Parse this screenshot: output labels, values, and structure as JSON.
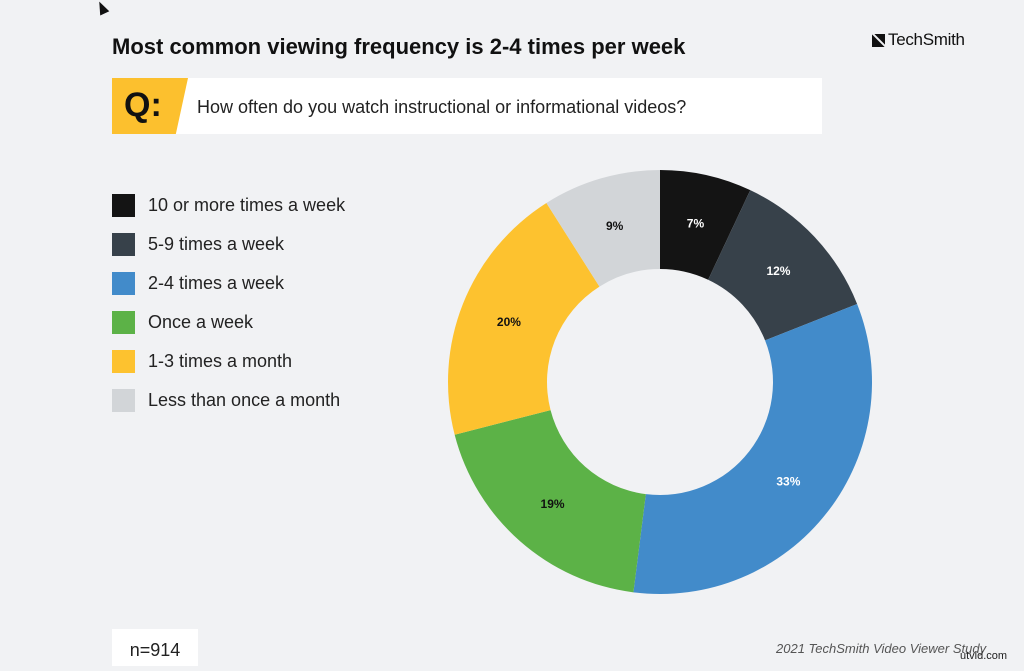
{
  "header": {
    "title": "Most common viewing frequency is 2-4 times per week",
    "logo": "TechSmith"
  },
  "question": {
    "badge": "Q:",
    "text": "How often do you watch instructional or informational videos?"
  },
  "footer": {
    "sample": "n=914",
    "source": "2021 TechSmith Video Viewer Study",
    "watermark": "utvid.com"
  },
  "chart_data": {
    "type": "pie",
    "variant": "donut",
    "start": "top, clockwise",
    "legend_position": "left",
    "categories": [
      "10 or more times a week",
      "5-9 times a week",
      "2-4 times a week",
      "Once a week",
      "1-3 times a month",
      "Less than once a month"
    ],
    "values": [
      7,
      12,
      33,
      19,
      20,
      9
    ],
    "labels": [
      "7%",
      "12%",
      "33%",
      "19%",
      "20%",
      "9%"
    ],
    "colors": [
      "#141414",
      "#37414a",
      "#428bca",
      "#5cb247",
      "#fdc22f",
      "#d2d5d8"
    ],
    "label_colors": [
      "#ffffff",
      "#ffffff",
      "#ffffff",
      "#111111",
      "#111111",
      "#111111"
    ]
  }
}
